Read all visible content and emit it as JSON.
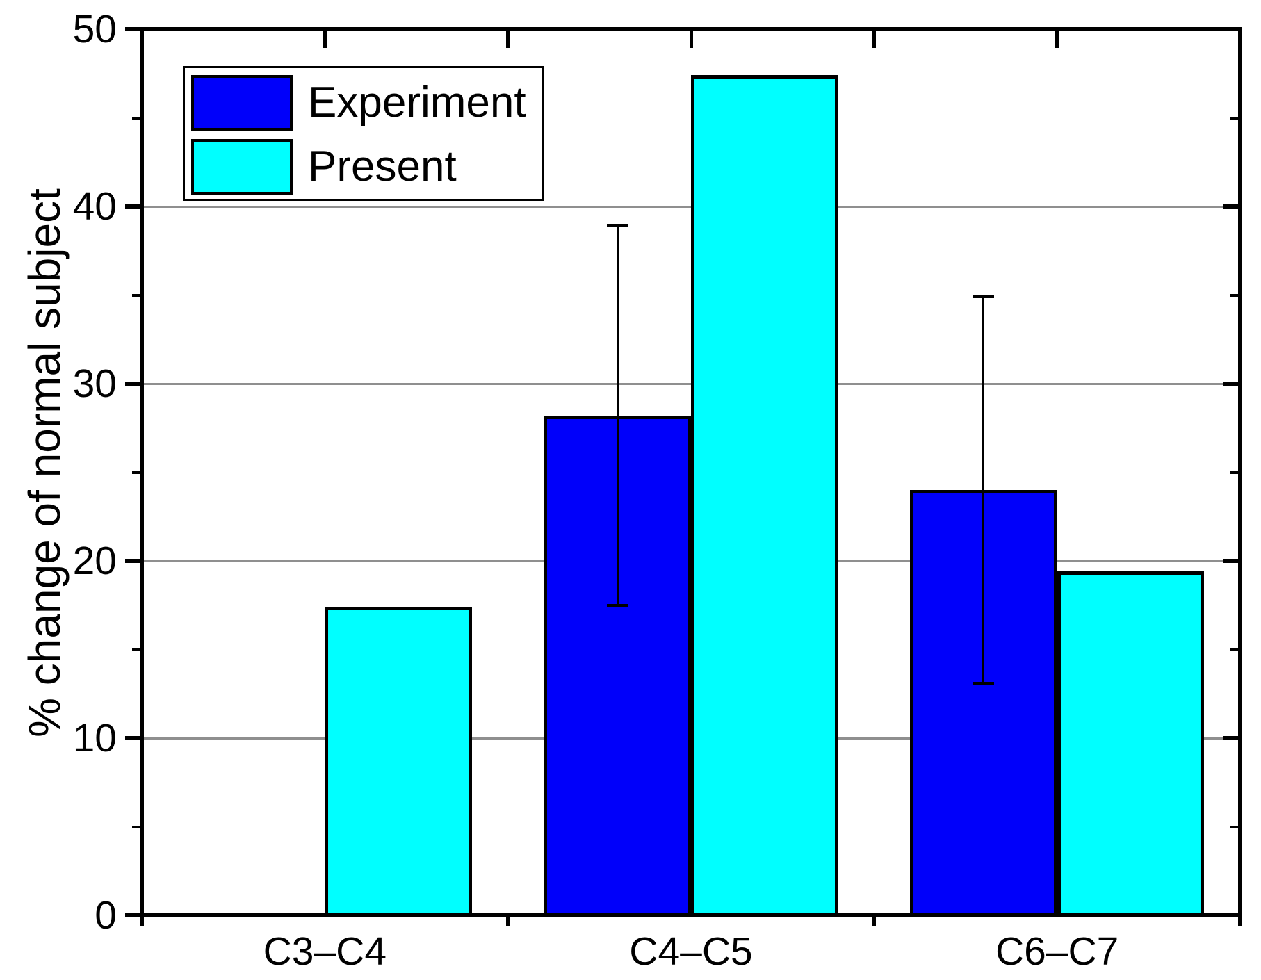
{
  "chart_data": {
    "type": "bar",
    "title": "",
    "categories": [
      "C3–C4",
      "C4–C5",
      "C6–C7"
    ],
    "series": [
      {
        "name": "Experiment",
        "color": "#0000fa",
        "values": [
          null,
          28.2,
          24.0
        ],
        "error_plus_minus": [
          null,
          10.7,
          10.9
        ]
      },
      {
        "name": "Present",
        "color": "#00ffff",
        "values": [
          17.4,
          47.4,
          19.4
        ],
        "error_plus_minus": [
          null,
          null,
          null
        ]
      }
    ],
    "xlabel": "",
    "ylabel": "% change of normal subject",
    "ylim": [
      0,
      50
    ],
    "yticks": [
      0,
      10,
      20,
      30,
      40,
      50
    ],
    "ytick_minor_step": 5,
    "grid": "horizontal-major",
    "gridline_values": [
      10,
      20,
      30,
      40
    ],
    "legend_position": "top-left-inside",
    "bar_edge_color": "#000000",
    "error_bar_color": "#000000"
  },
  "legend": {
    "items": [
      {
        "label": "Experiment"
      },
      {
        "label": "Present"
      }
    ]
  }
}
